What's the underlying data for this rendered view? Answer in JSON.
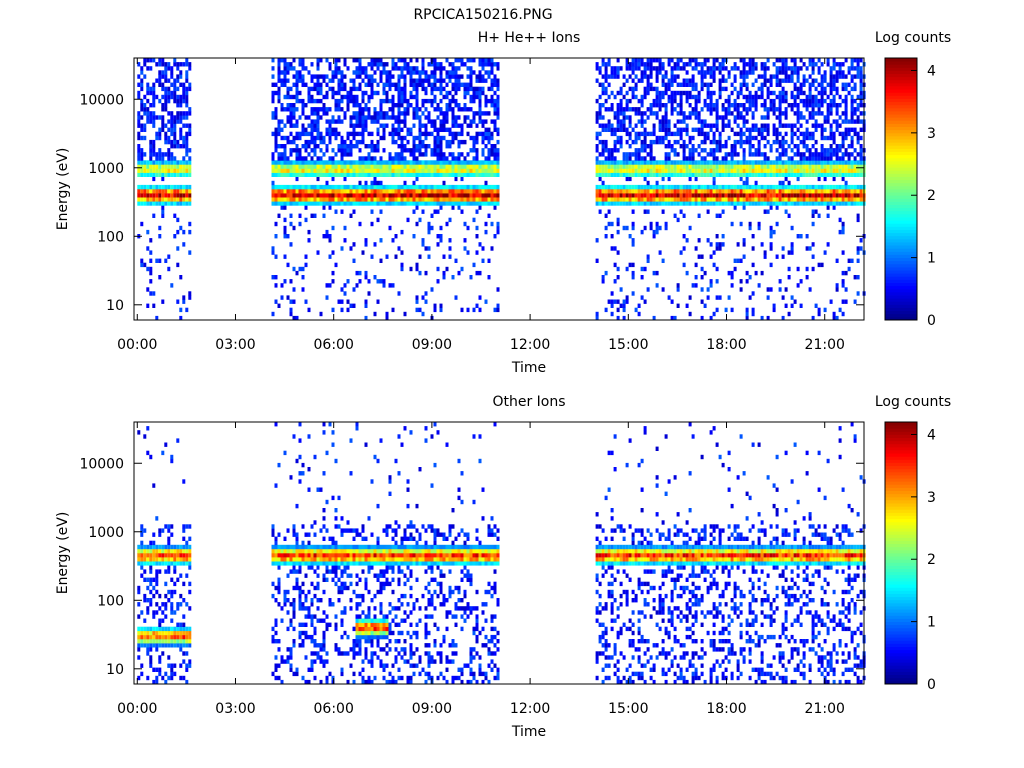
{
  "figure_title": "RPCICA150216.PNG",
  "chart_data": [
    {
      "type": "heatmap",
      "title": "H+ He++ Ions",
      "xlabel": "Time",
      "ylabel": "Energy (eV)",
      "x_ticks": [
        "00:00",
        "03:00",
        "06:00",
        "09:00",
        "12:00",
        "15:00",
        "18:00",
        "21:00"
      ],
      "y_ticks": [
        "10",
        "100",
        "1000",
        "10000"
      ],
      "y_scale": "log",
      "ylim": [
        6,
        40000
      ],
      "xlim_hours": [
        -0.1,
        22.2
      ],
      "colorbar": {
        "label": "Log counts",
        "ticks": [
          "0",
          "1",
          "2",
          "3",
          "4"
        ],
        "range": [
          0,
          4.2
        ],
        "colormap": "jet"
      },
      "data_intervals_hours": [
        [
          0.0,
          1.6
        ],
        [
          4.1,
          11.0
        ],
        [
          14.0,
          22.2
        ]
      ],
      "bands": [
        {
          "feature": "main proton band",
          "center_eV": 400,
          "peak_log_counts": 3.9
        },
        {
          "feature": "secondary band",
          "center_eV": 950,
          "peak_log_counts": 2.6
        }
      ]
    },
    {
      "type": "heatmap",
      "title": "Other Ions",
      "xlabel": "Time",
      "ylabel": "Energy (eV)",
      "x_ticks": [
        "00:00",
        "03:00",
        "06:00",
        "09:00",
        "12:00",
        "15:00",
        "18:00",
        "21:00"
      ],
      "y_ticks": [
        "10",
        "100",
        "1000",
        "10000"
      ],
      "y_scale": "log",
      "ylim": [
        6,
        40000
      ],
      "xlim_hours": [
        -0.1,
        22.2
      ],
      "colorbar": {
        "label": "Log counts",
        "ticks": [
          "0",
          "1",
          "2",
          "3",
          "4"
        ],
        "range": [
          0,
          4.2
        ],
        "colormap": "jet"
      },
      "data_intervals_hours": [
        [
          0.0,
          1.6
        ],
        [
          4.1,
          11.0
        ],
        [
          14.0,
          22.2
        ]
      ],
      "bands": [
        {
          "feature": "main heavy ion band",
          "center_eV": 450,
          "peak_log_counts": 3.5
        },
        {
          "feature": "low energy band (early)",
          "center_eV": 30,
          "peak_log_counts": 3.3
        },
        {
          "feature": "enhancement near 07:00",
          "center_eV": 40,
          "peak_log_counts": 3.4
        }
      ]
    }
  ]
}
